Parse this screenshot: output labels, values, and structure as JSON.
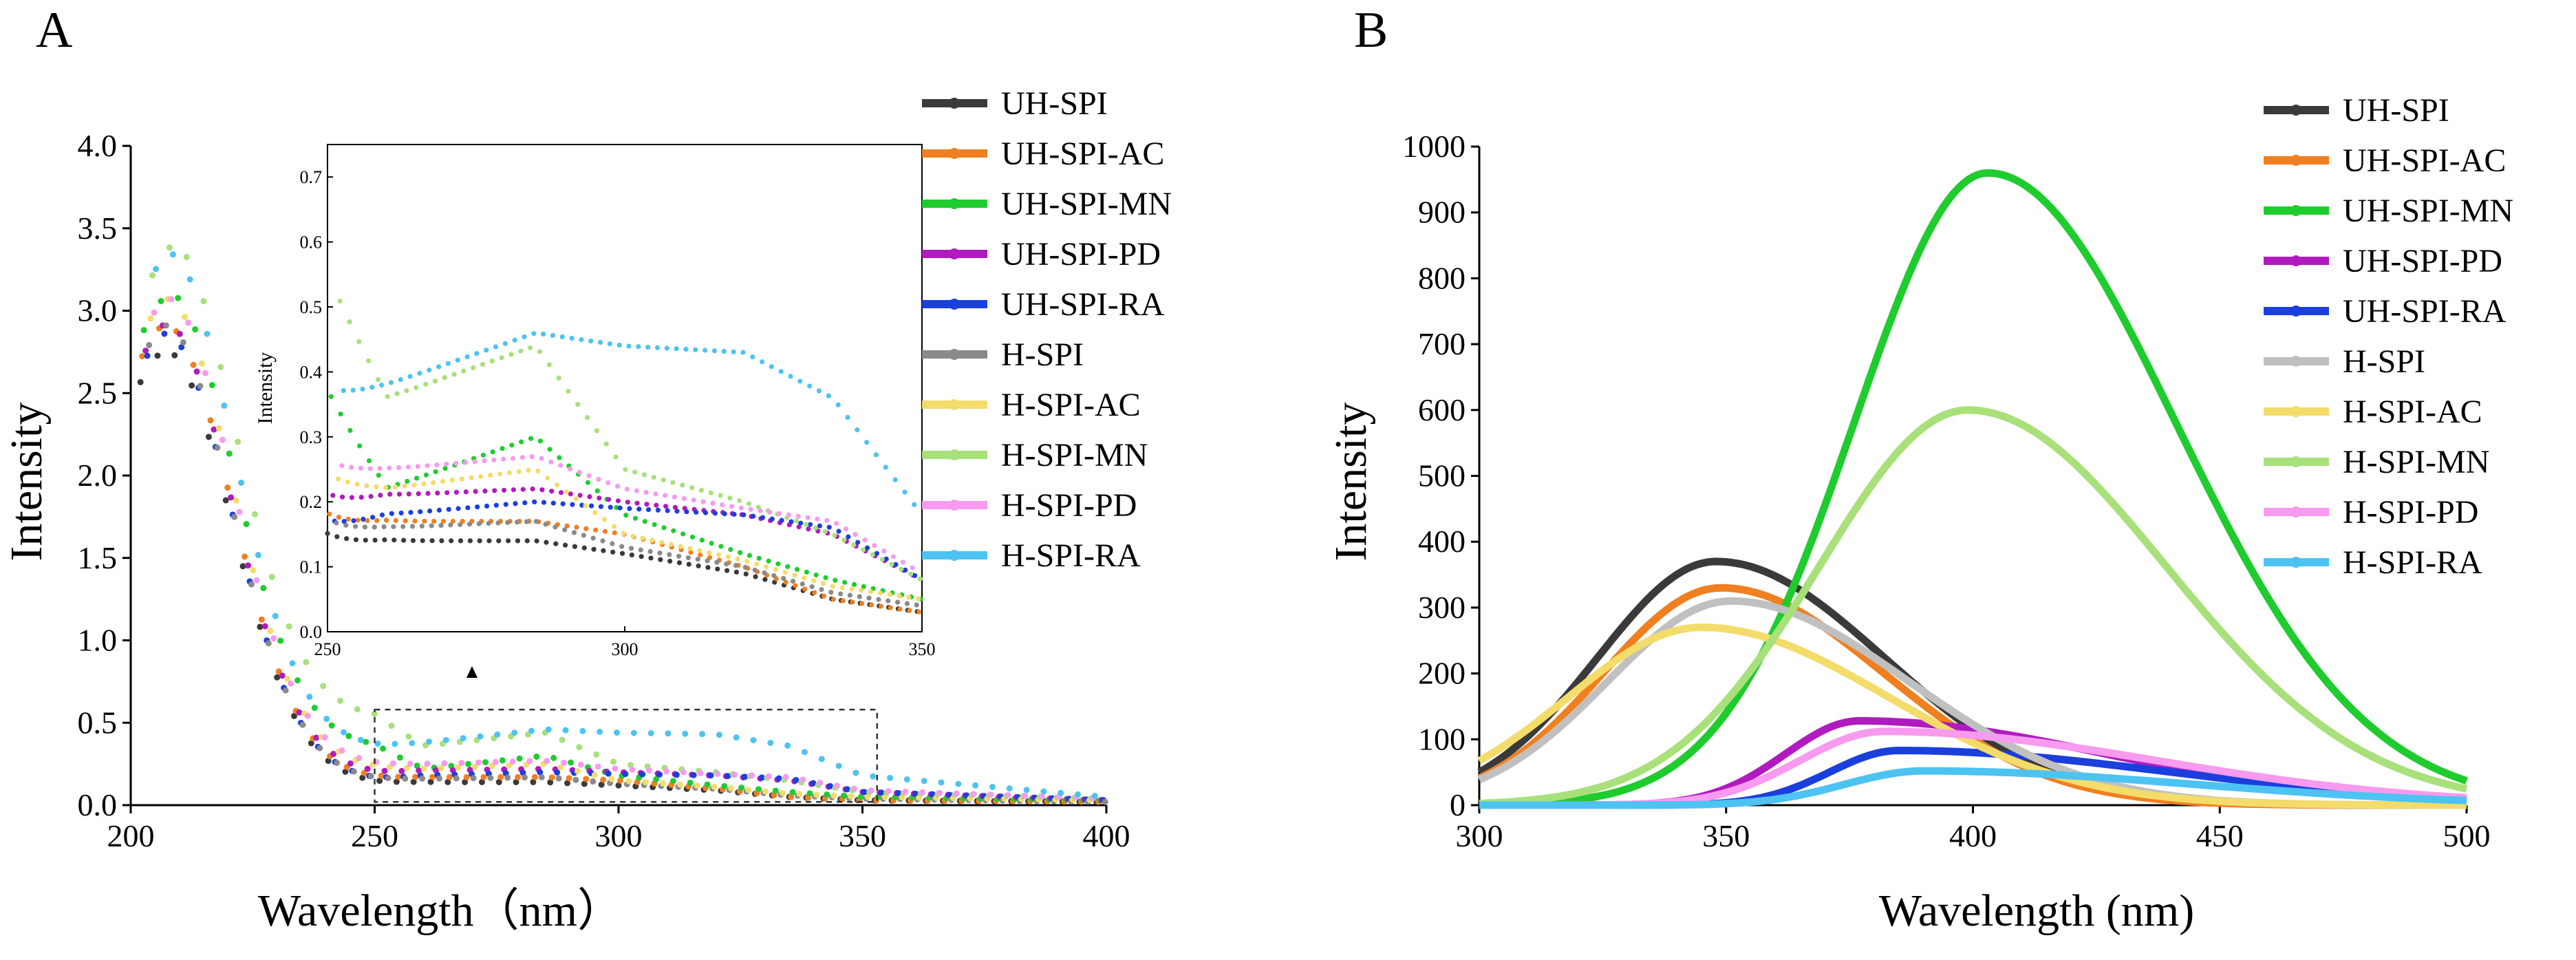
{
  "figure": {
    "panels": [
      "A",
      "B"
    ]
  },
  "chart_data": [
    {
      "panel": "A",
      "type": "scatter",
      "title": "",
      "xlabel": "Wavelength（nm）",
      "ylabel": "Intensity",
      "xlim": [
        200,
        400
      ],
      "ylim": [
        0,
        4.0
      ],
      "xticks": [
        "200",
        "250",
        "300",
        "350",
        "400"
      ],
      "yticks": [
        "0.0",
        "0.5",
        "1.0",
        "1.5",
        "2.0",
        "2.5",
        "3.0",
        "3.5",
        "4.0"
      ],
      "legend_position": "right",
      "series": [
        {
          "name": "UH-SPI",
          "color": "#3a3a3a",
          "peak": 2.75,
          "abs": [
            0.13,
            0.14,
            0.14,
            0.12,
            0.09,
            0.05,
            0.03,
            0.02
          ]
        },
        {
          "name": "UH-SPI-AC",
          "color": "#f07f20",
          "peak": 2.9,
          "abs": [
            0.16,
            0.17,
            0.17,
            0.15,
            0.1,
            0.05,
            0.03,
            0.02
          ]
        },
        {
          "name": "UH-SPI-MN",
          "color": "#1fcc2e",
          "peak": 3.05,
          "abs": [
            0.35,
            0.22,
            0.3,
            0.18,
            0.12,
            0.08,
            0.05,
            0.03
          ]
        },
        {
          "name": "UH-SPI-PD",
          "color": "#b01bbf",
          "peak": 2.9,
          "abs": [
            0.19,
            0.21,
            0.22,
            0.2,
            0.18,
            0.15,
            0.08,
            0.03
          ]
        },
        {
          "name": "UH-SPI-RA",
          "color": "#1b3fdc",
          "peak": 2.85,
          "abs": [
            0.15,
            0.18,
            0.2,
            0.19,
            0.18,
            0.16,
            0.08,
            0.03
          ]
        },
        {
          "name": "H-SPI",
          "color": "#8a8a8a",
          "peak": 2.9,
          "abs": [
            0.15,
            0.16,
            0.17,
            0.13,
            0.1,
            0.06,
            0.04,
            0.02
          ]
        },
        {
          "name": "H-SPI-AC",
          "color": "#f3dc6a",
          "peak": 3.05,
          "abs": [
            0.22,
            0.22,
            0.25,
            0.15,
            0.11,
            0.07,
            0.05,
            0.03
          ]
        },
        {
          "name": "H-SPI-MN",
          "color": "#a8e07a",
          "peak": 3.3,
          "abs": [
            0.53,
            0.36,
            0.44,
            0.25,
            0.2,
            0.15,
            0.08,
            0.04
          ]
        },
        {
          "name": "H-SPI-PD",
          "color": "#f79af0",
          "peak": 3.05,
          "abs": [
            0.24,
            0.25,
            0.27,
            0.22,
            0.19,
            0.17,
            0.09,
            0.04
          ]
        },
        {
          "name": "H-SPI-RA",
          "color": "#4dc3f2",
          "peak": 3.3,
          "abs": [
            0.35,
            0.38,
            0.46,
            0.44,
            0.43,
            0.36,
            0.18,
            0.05
          ]
        }
      ],
      "abs_x": [
        250,
        260,
        285,
        300,
        320,
        335,
        350,
        400
      ],
      "inset": {
        "xlim": [
          250,
          350
        ],
        "ylim": [
          0,
          0.75
        ],
        "xticks": [
          "250",
          "300",
          "350"
        ],
        "yticks": [
          "0.0",
          "0.1",
          "0.2",
          "0.3",
          "0.4",
          "0.5",
          "0.6",
          "0.7"
        ],
        "ylabel": "Intensity"
      }
    },
    {
      "panel": "B",
      "type": "line",
      "title": "",
      "xlabel": "Wavelength (nm)",
      "ylabel": "Intensity",
      "xlim": [
        300,
        500
      ],
      "ylim": [
        0,
        1000
      ],
      "xticks": [
        "300",
        "350",
        "400",
        "450",
        "500"
      ],
      "yticks": [
        "0",
        "100",
        "200",
        "300",
        "400",
        "500",
        "600",
        "700",
        "800",
        "900",
        "1000"
      ],
      "legend_position": "top-right",
      "series": [
        {
          "name": "UH-SPI",
          "color": "#3a3a3a",
          "peak_x": 348,
          "peak_y": 370,
          "sigma_left": 24,
          "sigma_right": 34
        },
        {
          "name": "UH-SPI-AC",
          "color": "#f07f20",
          "peak_x": 349,
          "peak_y": 330,
          "sigma_left": 24,
          "sigma_right": 33
        },
        {
          "name": "UH-SPI-MN",
          "color": "#1fcc2e",
          "peak_x": 403,
          "peak_y": 960,
          "sigma_left": 27,
          "sigma_right": 38
        },
        {
          "name": "UH-SPI-PD",
          "color": "#b01bbf",
          "peak_x": 377,
          "peak_y": 128,
          "sigma_left": 15,
          "sigma_right": 50
        },
        {
          "name": "UH-SPI-RA",
          "color": "#1b3fdc",
          "peak_x": 385,
          "peak_y": 83,
          "sigma_left": 14,
          "sigma_right": 55
        },
        {
          "name": "H-SPI",
          "color": "#c0c0c0",
          "peak_x": 351,
          "peak_y": 310,
          "sigma_left": 25,
          "sigma_right": 36
        },
        {
          "name": "H-SPI-AC",
          "color": "#f3dc6a",
          "peak_x": 345,
          "peak_y": 270,
          "sigma_left": 27,
          "sigma_right": 38
        },
        {
          "name": "H-SPI-MN",
          "color": "#a8e07a",
          "peak_x": 399,
          "peak_y": 600,
          "sigma_left": 30,
          "sigma_right": 40
        },
        {
          "name": "H-SPI-PD",
          "color": "#f79af0",
          "peak_x": 382,
          "peak_y": 112,
          "sigma_left": 17,
          "sigma_right": 55
        },
        {
          "name": "H-SPI-RA",
          "color": "#4dc3f2",
          "peak_x": 390,
          "peak_y": 52,
          "sigma_left": 16,
          "sigma_right": 55
        }
      ]
    }
  ]
}
